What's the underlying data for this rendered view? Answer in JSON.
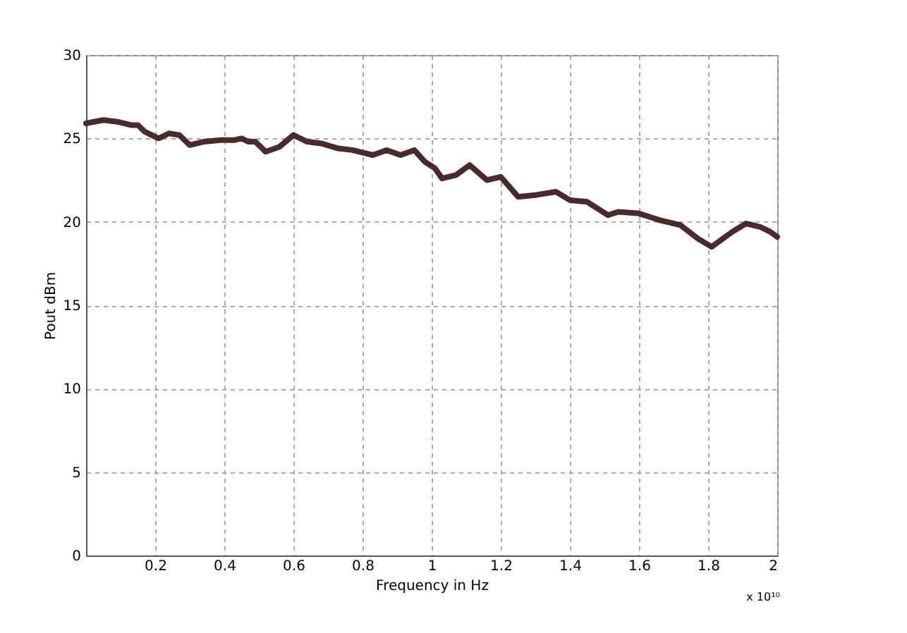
{
  "chart_data": {
    "type": "line",
    "xlabel": "Frequency in Hz",
    "ylabel": "Pout dBm",
    "annotations": [
      "x 10¹⁰"
    ],
    "x": [
      0,
      0.05,
      0.09,
      0.13,
      0.15,
      0.17,
      0.21,
      0.24,
      0.27,
      0.3,
      0.34,
      0.39,
      0.43,
      0.45,
      0.47,
      0.49,
      0.52,
      0.56,
      0.6,
      0.64,
      0.68,
      0.73,
      0.77,
      0.83,
      0.87,
      0.91,
      0.95,
      0.98,
      1.01,
      1.03,
      1.07,
      1.11,
      1.16,
      1.2,
      1.25,
      1.3,
      1.36,
      1.4,
      1.45,
      1.51,
      1.54,
      1.6,
      1.66,
      1.72,
      1.77,
      1.81,
      1.87,
      1.91,
      1.95,
      1.98,
      2.0
    ],
    "series": [
      {
        "color": "#4a2b2b",
        "values": [
          25.9,
          26.1,
          26.0,
          25.8,
          25.8,
          25.4,
          25.0,
          25.3,
          25.2,
          24.6,
          24.8,
          24.9,
          24.9,
          25.0,
          24.8,
          24.8,
          24.2,
          24.5,
          25.2,
          24.8,
          24.7,
          24.4,
          24.3,
          24.0,
          24.3,
          24.0,
          24.3,
          23.6,
          23.2,
          22.6,
          22.8,
          23.4,
          22.5,
          22.7,
          21.5,
          21.6,
          21.8,
          21.3,
          21.2,
          20.4,
          20.6,
          20.5,
          20.1,
          19.8,
          19.0,
          18.5,
          19.4,
          19.9,
          19.7,
          19.4,
          19.1
        ]
      }
    ],
    "xlim": [
      0,
      2
    ],
    "xticks": [
      0.2,
      0.4,
      0.6,
      0.8,
      1,
      1.2,
      1.4,
      1.6,
      1.8,
      2
    ],
    "ylim": [
      0,
      30
    ],
    "yticks": [
      0,
      5,
      10,
      15,
      20,
      25,
      30
    ],
    "grid": true,
    "line_style": "solid",
    "marker": "none"
  }
}
